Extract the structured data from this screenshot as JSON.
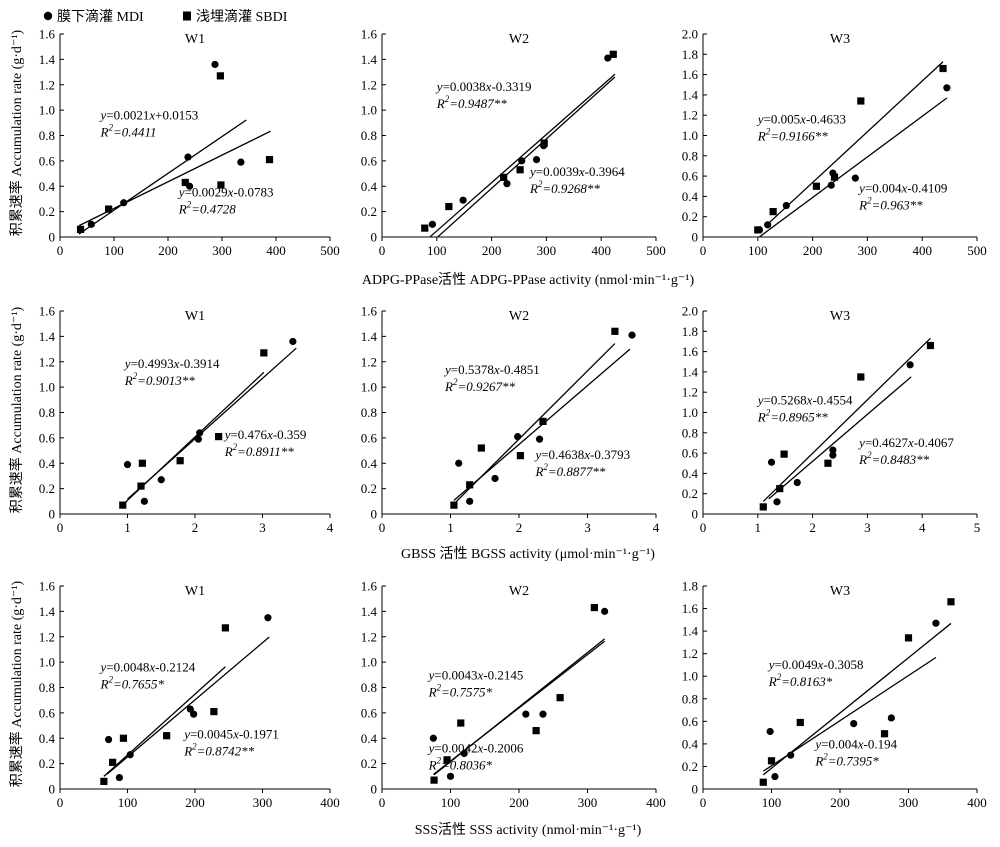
{
  "legend": [
    {
      "symbol": "circle",
      "label": "膜下滴灌 MDI"
    },
    {
      "symbol": "square",
      "label": "浅埋滴灌 SBDI"
    }
  ],
  "row_xlabels": [
    "ADPG-PPase活性 ADPG-PPase activity (nmol·min⁻¹·g⁻¹)",
    "GBSS 活性 BGSS  activity (μmol·min⁻¹·g⁻¹)",
    "SSS活性 SSS activity (nmol·min⁻¹·g⁻¹)"
  ],
  "ylabel": "积累速率 Accumulation rate (g·d⁻¹)",
  "chart_data": [
    {
      "type": "scatter",
      "title": "W1",
      "row": 0,
      "col": 0,
      "xlim": [
        0,
        500
      ],
      "xticks": [
        0,
        100,
        200,
        300,
        400,
        500
      ],
      "ylim": [
        0,
        1.6
      ],
      "yticks": [
        0,
        0.2,
        0.4,
        0.6,
        0.8,
        1.0,
        1.2,
        1.4,
        1.6
      ],
      "ydec": 1,
      "series": [
        {
          "name": "膜下滴灌 MDI",
          "marker": "circle",
          "x": [
            58,
            118,
            240,
            237,
            287,
            335
          ],
          "y": [
            0.1,
            0.27,
            0.4,
            0.63,
            1.36,
            0.59
          ],
          "fit": {
            "slope": 0.0029,
            "intercept": -0.0783,
            "x": [
              35,
              345
            ]
          },
          "eq": "y=0.0029x-0.0783",
          "r2": "R²=0.4728"
        },
        {
          "name": "浅埋滴灌 SBDI",
          "marker": "square",
          "x": [
            38,
            90,
            232,
            298,
            297,
            388
          ],
          "y": [
            0.06,
            0.22,
            0.43,
            0.41,
            1.27,
            0.61
          ],
          "fit": {
            "slope": 0.0021,
            "intercept": 0.0153,
            "x": [
              35,
              390
            ]
          },
          "eq": "y=0.0021x+0.0153",
          "r2": "R²=0.4411"
        }
      ]
    },
    {
      "type": "scatter",
      "title": "W2",
      "row": 0,
      "col": 1,
      "xlim": [
        0,
        500
      ],
      "xticks": [
        0,
        100,
        200,
        300,
        400,
        500
      ],
      "ylim": [
        0,
        1.6
      ],
      "yticks": [
        0,
        0.2,
        0.4,
        0.6,
        0.8,
        1.0,
        1.2,
        1.4,
        1.6
      ],
      "ydec": 1,
      "series": [
        {
          "name": "膜下滴灌 MDI",
          "marker": "circle",
          "x": [
            92,
            148,
            228,
            255,
            282,
            295,
            412
          ],
          "y": [
            0.1,
            0.29,
            0.42,
            0.6,
            0.61,
            0.72,
            1.41
          ],
          "fit": {
            "slope": 0.0038,
            "intercept": -0.3319,
            "x": [
              88,
              425
            ]
          },
          "eq": "y=0.0038x-0.3319",
          "r2": "R²=0.9487**"
        },
        {
          "name": "浅埋滴灌 SBDI",
          "marker": "square",
          "x": [
            78,
            122,
            222,
            252,
            296,
            422
          ],
          "y": [
            0.07,
            0.24,
            0.47,
            0.53,
            0.74,
            1.44
          ],
          "fit": {
            "slope": 0.0039,
            "intercept": -0.3964,
            "x": [
              102,
              425
            ]
          },
          "eq": "y=0.0039x-0.3964",
          "r2": "R²=0.9268**"
        }
      ]
    },
    {
      "type": "scatter",
      "title": "W3",
      "row": 0,
      "col": 2,
      "xlim": [
        0,
        500
      ],
      "xticks": [
        0,
        100,
        200,
        300,
        400,
        500
      ],
      "ylim": [
        0,
        2.0
      ],
      "yticks": [
        0,
        0.2,
        0.4,
        0.6,
        0.8,
        1.0,
        1.2,
        1.4,
        1.6,
        1.8,
        2.0
      ],
      "ydec": 1,
      "series": [
        {
          "name": "膜下滴灌 MDI",
          "marker": "circle",
          "x": [
            103,
            118,
            152,
            234,
            237,
            278,
            445
          ],
          "y": [
            0.07,
            0.12,
            0.31,
            0.51,
            0.63,
            0.58,
            1.47
          ],
          "fit": {
            "slope": 0.004,
            "intercept": -0.4109,
            "x": [
              103,
              445
            ]
          },
          "eq": "y=0.004x-0.4109",
          "r2": "R²=0.963**"
        },
        {
          "name": "浅埋滴灌 SBDI",
          "marker": "square",
          "x": [
            100,
            128,
            207,
            240,
            288,
            438
          ],
          "y": [
            0.07,
            0.25,
            0.5,
            0.59,
            1.34,
            1.66
          ],
          "fit": {
            "slope": 0.005,
            "intercept": -0.4633,
            "x": [
              113,
              438
            ]
          },
          "eq": "y=0.005x-0.4633",
          "r2": "R²=0.9166**"
        }
      ]
    },
    {
      "type": "scatter",
      "title": "W1",
      "row": 1,
      "col": 0,
      "xlim": [
        0,
        4
      ],
      "xticks": [
        0,
        1,
        2,
        3,
        4
      ],
      "ylim": [
        0,
        1.6
      ],
      "yticks": [
        0,
        0.2,
        0.4,
        0.6,
        0.8,
        1.0,
        1.2,
        1.4,
        1.6
      ],
      "ydec": 1,
      "series": [
        {
          "name": "膜下滴灌 MDI",
          "marker": "circle",
          "x": [
            1.0,
            1.25,
            1.5,
            2.05,
            2.07,
            3.45
          ],
          "y": [
            0.39,
            0.1,
            0.27,
            0.59,
            0.64,
            1.36
          ],
          "fit": {
            "slope": 0.476,
            "intercept": -0.359,
            "x": [
              1.0,
              3.5
            ]
          },
          "eq": "y=0.476x-0.359",
          "r2": "R²=0.8911**"
        },
        {
          "name": "浅埋滴灌 SBDI",
          "marker": "square",
          "x": [
            0.93,
            1.2,
            1.22,
            1.78,
            2.35,
            3.02
          ],
          "y": [
            0.07,
            0.22,
            0.4,
            0.42,
            0.61,
            1.27
          ],
          "fit": {
            "slope": 0.4993,
            "intercept": -0.3914,
            "x": [
              0.93,
              3.02
            ]
          },
          "eq": "y=0.4993x-0.3914",
          "r2": "R²=0.9013**"
        }
      ]
    },
    {
      "type": "scatter",
      "title": "W2",
      "row": 1,
      "col": 1,
      "xlim": [
        0,
        4
      ],
      "xticks": [
        0,
        1,
        2,
        3,
        4
      ],
      "ylim": [
        0,
        1.6
      ],
      "yticks": [
        0,
        0.2,
        0.4,
        0.6,
        0.8,
        1.0,
        1.2,
        1.4,
        1.6
      ],
      "ydec": 1,
      "series": [
        {
          "name": "膜下滴灌 MDI",
          "marker": "circle",
          "x": [
            1.12,
            1.28,
            1.65,
            1.98,
            2.3,
            2.35,
            3.65
          ],
          "y": [
            0.4,
            0.1,
            0.28,
            0.61,
            0.59,
            0.73,
            1.41
          ],
          "fit": {
            "slope": 0.4638,
            "intercept": -0.3793,
            "x": [
              1.05,
              3.62
            ]
          },
          "eq": "y=0.4638x-0.3793",
          "r2": "R²=0.8877**"
        },
        {
          "name": "浅埋滴灌 SBDI",
          "marker": "square",
          "x": [
            1.05,
            1.28,
            1.45,
            2.02,
            2.35,
            3.4
          ],
          "y": [
            0.07,
            0.23,
            0.52,
            0.46,
            0.73,
            1.44
          ],
          "fit": {
            "slope": 0.5378,
            "intercept": -0.4851,
            "x": [
              1.05,
              3.4
            ]
          },
          "eq": "y=0.5378x-0.4851",
          "r2": "R²=0.9267**"
        }
      ]
    },
    {
      "type": "scatter",
      "title": "W3",
      "row": 1,
      "col": 2,
      "xlim": [
        0,
        5
      ],
      "xticks": [
        0,
        1,
        2,
        3,
        4,
        5
      ],
      "ylim": [
        0,
        2.0
      ],
      "yticks": [
        0,
        0.2,
        0.4,
        0.6,
        0.8,
        1.0,
        1.2,
        1.4,
        1.6,
        1.8,
        2.0
      ],
      "ydec": 1,
      "series": [
        {
          "name": "膜下滴灌 MDI",
          "marker": "circle",
          "x": [
            1.25,
            1.35,
            1.72,
            2.37,
            2.37,
            3.78
          ],
          "y": [
            0.51,
            0.12,
            0.31,
            0.58,
            0.63,
            1.47
          ],
          "fit": {
            "slope": 0.4627,
            "intercept": -0.4067,
            "x": [
              1.2,
              3.8
            ]
          },
          "eq": "y=0.4627x-0.4067",
          "r2": "R²=0.8483**"
        },
        {
          "name": "浅埋滴灌 SBDI",
          "marker": "square",
          "x": [
            1.1,
            1.4,
            1.48,
            2.28,
            2.88,
            4.15
          ],
          "y": [
            0.07,
            0.25,
            0.59,
            0.5,
            1.35,
            1.66
          ],
          "fit": {
            "slope": 0.5268,
            "intercept": -0.4554,
            "x": [
              1.1,
              4.15
            ]
          },
          "eq": "y=0.5268x-0.4554",
          "r2": "R²=0.8965**"
        }
      ]
    },
    {
      "type": "scatter",
      "title": "W1",
      "row": 2,
      "col": 0,
      "xlim": [
        0,
        400
      ],
      "xticks": [
        0,
        100,
        200,
        300,
        400
      ],
      "ylim": [
        0,
        1.6
      ],
      "yticks": [
        0,
        0.2,
        0.4,
        0.6,
        0.8,
        1.0,
        1.2,
        1.4,
        1.6
      ],
      "ydec": 1,
      "series": [
        {
          "name": "膜下滴灌 MDI",
          "marker": "circle",
          "x": [
            72,
            88,
            104,
            193,
            198,
            308
          ],
          "y": [
            0.39,
            0.09,
            0.27,
            0.63,
            0.59,
            1.35
          ],
          "fit": {
            "slope": 0.0045,
            "intercept": -0.1971,
            "x": [
              70,
              310
            ]
          },
          "eq": "y=0.0045x-0.1971",
          "r2": "R²=0.8742**"
        },
        {
          "name": "浅埋滴灌 SBDI",
          "marker": "square",
          "x": [
            65,
            78,
            94,
            158,
            228,
            245
          ],
          "y": [
            0.06,
            0.21,
            0.4,
            0.42,
            0.61,
            1.27
          ],
          "fit": {
            "slope": 0.0048,
            "intercept": -0.2124,
            "x": [
              65,
              245
            ]
          },
          "eq": "y=0.0048x-0.2124",
          "r2": "R²=0.7655*"
        }
      ]
    },
    {
      "type": "scatter",
      "title": "W2",
      "row": 2,
      "col": 1,
      "xlim": [
        0,
        400
      ],
      "xticks": [
        0,
        100,
        200,
        300,
        400
      ],
      "ylim": [
        0,
        1.6
      ],
      "yticks": [
        0,
        0.2,
        0.4,
        0.6,
        0.8,
        1.0,
        1.2,
        1.4,
        1.6
      ],
      "ydec": 1,
      "series": [
        {
          "name": "膜下滴灌 MDI",
          "marker": "circle",
          "x": [
            75,
            100,
            120,
            210,
            235,
            325
          ],
          "y": [
            0.4,
            0.1,
            0.28,
            0.59,
            0.59,
            1.4
          ],
          "fit": {
            "slope": 0.0042,
            "intercept": -0.2006,
            "x": [
              75,
              325
            ]
          },
          "eq": "y=0.0042x-0.2006",
          "r2": "R²=0.8036*"
        },
        {
          "name": "浅埋滴灌 SBDI",
          "marker": "square",
          "x": [
            76,
            95,
            115,
            225,
            260,
            310
          ],
          "y": [
            0.07,
            0.23,
            0.52,
            0.46,
            0.72,
            1.43
          ],
          "fit": {
            "slope": 0.0043,
            "intercept": -0.2145,
            "x": [
              76,
              325
            ]
          },
          "eq": "y=0.0043x-0.2145",
          "r2": "R²=0.7575*"
        }
      ]
    },
    {
      "type": "scatter",
      "title": "W3",
      "row": 2,
      "col": 2,
      "xlim": [
        0,
        400
      ],
      "xticks": [
        0,
        100,
        200,
        300,
        400
      ],
      "ylim": [
        0,
        1.8
      ],
      "yticks": [
        0,
        0.2,
        0.4,
        0.6,
        0.8,
        1.0,
        1.2,
        1.4,
        1.6,
        1.8
      ],
      "ydec": 1,
      "series": [
        {
          "name": "膜下滴灌 MDI",
          "marker": "circle",
          "x": [
            98,
            105,
            128,
            220,
            275,
            340
          ],
          "y": [
            0.51,
            0.11,
            0.3,
            0.58,
            0.63,
            1.47
          ],
          "fit": {
            "slope": 0.004,
            "intercept": -0.194,
            "x": [
              88,
              340
            ]
          },
          "eq": "y=0.004x-0.194",
          "r2": "R²=0.7395*"
        },
        {
          "name": "浅埋滴灌 SBDI",
          "marker": "square",
          "x": [
            88,
            100,
            142,
            265,
            300,
            362
          ],
          "y": [
            0.06,
            0.25,
            0.59,
            0.49,
            1.34,
            1.66
          ],
          "fit": {
            "slope": 0.0049,
            "intercept": -0.3058,
            "x": [
              88,
              362
            ]
          },
          "eq": "y=0.0049x-0.3058",
          "r2": "R²=0.8163*"
        }
      ]
    }
  ]
}
